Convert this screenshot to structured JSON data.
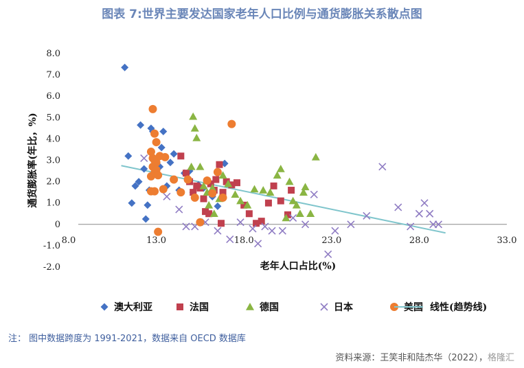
{
  "title": "图表 7:世界主要发达国家老年人口比例与通货膨胀关系散点图",
  "note": "注：  图中数据跨度为 1991-2021，数据来自 OECD 数据库",
  "source": "资料来源：王笑非和陆杰华（2022），",
  "watermark": "格隆汇",
  "chart_data": {
    "type": "scatter",
    "xlabel": "老年人口占比(%)",
    "ylabel": "通货膨胀率(年比，%)",
    "xlim": [
      8.0,
      33.0
    ],
    "ylim": [
      -2.0,
      8.0
    ],
    "x_ticks": [
      "8.0",
      "13.0",
      "18.0",
      "23.0",
      "28.0",
      "33.0"
    ],
    "y_ticks": [
      "-2.0",
      "-1.0",
      "0",
      "1.0",
      "2.0",
      "3.0",
      "4.0",
      "5.0",
      "6.0",
      "7.0",
      "8.0"
    ],
    "legend_position": "bottom",
    "series": [
      {
        "name": "澳大利亚",
        "marker": "diamond",
        "color": "#4472c4",
        "points": [
          [
            11.2,
            7.35
          ],
          [
            11.4,
            3.2
          ],
          [
            11.6,
            1.0
          ],
          [
            11.8,
            1.8
          ],
          [
            12.0,
            2.0
          ],
          [
            12.1,
            4.65
          ],
          [
            12.3,
            2.6
          ],
          [
            12.4,
            0.25
          ],
          [
            12.5,
            0.9
          ],
          [
            12.6,
            1.6
          ],
          [
            12.7,
            4.5
          ],
          [
            12.8,
            4.35
          ],
          [
            12.9,
            2.7
          ],
          [
            13.0,
            3.0
          ],
          [
            13.1,
            2.3
          ],
          [
            13.2,
            2.7
          ],
          [
            13.3,
            3.6
          ],
          [
            13.4,
            4.35
          ],
          [
            13.6,
            1.8
          ],
          [
            13.8,
            2.9
          ],
          [
            14.0,
            3.3
          ],
          [
            14.3,
            1.6
          ],
          [
            14.6,
            2.4
          ],
          [
            14.9,
            2.5
          ],
          [
            15.1,
            1.5
          ],
          [
            15.4,
            1.85
          ],
          [
            15.7,
            1.7
          ],
          [
            16.2,
            1.3
          ],
          [
            16.5,
            0.85
          ],
          [
            16.9,
            2.85
          ]
        ]
      },
      {
        "name": "法国",
        "marker": "square",
        "color": "#c0404e",
        "points": [
          [
            14.4,
            3.2
          ],
          [
            14.7,
            2.4
          ],
          [
            14.9,
            2.0
          ],
          [
            15.1,
            1.5
          ],
          [
            15.3,
            1.8
          ],
          [
            15.5,
            1.7
          ],
          [
            15.7,
            1.2
          ],
          [
            15.8,
            0.6
          ],
          [
            16.0,
            0.5
          ],
          [
            16.1,
            1.9
          ],
          [
            16.3,
            1.6
          ],
          [
            16.4,
            2.1
          ],
          [
            16.6,
            2.8
          ],
          [
            16.7,
            0.05
          ],
          [
            16.8,
            1.5
          ],
          [
            17.0,
            2.0
          ],
          [
            17.3,
            1.85
          ],
          [
            17.6,
            1.95
          ],
          [
            18.0,
            0.9
          ],
          [
            18.3,
            0.5
          ],
          [
            18.7,
            0.05
          ],
          [
            19.0,
            0.15
          ],
          [
            19.4,
            1.0
          ],
          [
            19.7,
            1.8
          ],
          [
            20.1,
            1.1
          ],
          [
            20.5,
            0.45
          ],
          [
            20.7,
            1.6
          ]
        ]
      },
      {
        "name": "德国",
        "marker": "triangle",
        "color": "#8ab543",
        "points": [
          [
            15.0,
            2.7
          ],
          [
            15.1,
            5.05
          ],
          [
            15.2,
            4.5
          ],
          [
            15.3,
            4.05
          ],
          [
            15.5,
            2.7
          ],
          [
            15.7,
            1.8
          ],
          [
            15.9,
            1.5
          ],
          [
            16.0,
            0.9
          ],
          [
            16.2,
            1.7
          ],
          [
            16.3,
            0.5
          ],
          [
            16.6,
            1.2
          ],
          [
            16.8,
            2.3
          ],
          [
            17.1,
            1.9
          ],
          [
            17.5,
            1.4
          ],
          [
            17.8,
            1.1
          ],
          [
            18.2,
            0.9
          ],
          [
            18.6,
            1.65
          ],
          [
            19.1,
            1.6
          ],
          [
            19.5,
            1.5
          ],
          [
            19.9,
            2.3
          ],
          [
            20.1,
            2.6
          ],
          [
            20.4,
            0.3
          ],
          [
            20.6,
            2.0
          ],
          [
            20.8,
            1.1
          ],
          [
            21.0,
            0.9
          ],
          [
            21.2,
            0.5
          ],
          [
            21.4,
            1.5
          ],
          [
            21.5,
            1.75
          ],
          [
            21.8,
            0.5
          ],
          [
            22.1,
            3.15
          ]
        ]
      },
      {
        "name": "日本",
        "marker": "x",
        "color": "#8f7cc3",
        "points": [
          [
            12.3,
            3.1
          ],
          [
            13.6,
            1.3
          ],
          [
            14.3,
            0.7
          ],
          [
            14.7,
            -0.1
          ],
          [
            15.2,
            -0.1
          ],
          [
            15.8,
            0.1
          ],
          [
            16.5,
            -0.3
          ],
          [
            17.2,
            -0.7
          ],
          [
            17.8,
            0.1
          ],
          [
            18.5,
            -0.2
          ],
          [
            18.8,
            -0.9
          ],
          [
            19.2,
            -0.1
          ],
          [
            19.6,
            -0.3
          ],
          [
            20.2,
            -0.3
          ],
          [
            20.8,
            0.3
          ],
          [
            21.5,
            0.0
          ],
          [
            22.0,
            1.4
          ],
          [
            22.8,
            -1.4
          ],
          [
            23.2,
            -0.3
          ],
          [
            24.1,
            0.0
          ],
          [
            25.0,
            0.4
          ],
          [
            25.9,
            2.7
          ],
          [
            26.8,
            0.8
          ],
          [
            27.5,
            -0.1
          ],
          [
            28.0,
            0.5
          ],
          [
            28.3,
            1.0
          ],
          [
            28.6,
            0.5
          ],
          [
            28.8,
            0.0
          ],
          [
            29.1,
            0.0
          ]
        ]
      },
      {
        "name": "美国",
        "marker": "circle",
        "color": "#ed7d31",
        "points": [
          [
            12.7,
            3.4
          ],
          [
            12.7,
            2.25
          ],
          [
            12.7,
            1.55
          ],
          [
            12.8,
            3.1
          ],
          [
            12.8,
            2.7
          ],
          [
            12.8,
            5.4
          ],
          [
            12.9,
            4.25
          ],
          [
            12.9,
            3.0
          ],
          [
            12.9,
            2.4
          ],
          [
            12.9,
            1.55
          ],
          [
            13.0,
            3.85
          ],
          [
            13.0,
            2.9
          ],
          [
            13.0,
            2.55
          ],
          [
            13.1,
            2.3
          ],
          [
            13.1,
            -0.35
          ],
          [
            13.2,
            3.2
          ],
          [
            13.4,
            1.65
          ],
          [
            13.5,
            3.15
          ],
          [
            14.0,
            2.1
          ],
          [
            14.4,
            1.5
          ],
          [
            14.8,
            2.1
          ],
          [
            15.2,
            1.25
          ],
          [
            15.5,
            0.1
          ],
          [
            15.9,
            2.05
          ],
          [
            16.2,
            1.45
          ],
          [
            16.5,
            2.45
          ],
          [
            16.8,
            1.25
          ],
          [
            17.3,
            4.7
          ]
        ]
      }
    ],
    "trendline": {
      "name": "线性(趋势线)",
      "color": "#7fc5cc",
      "from": [
        11.0,
        2.75
      ],
      "to": [
        29.5,
        -0.4
      ]
    }
  }
}
